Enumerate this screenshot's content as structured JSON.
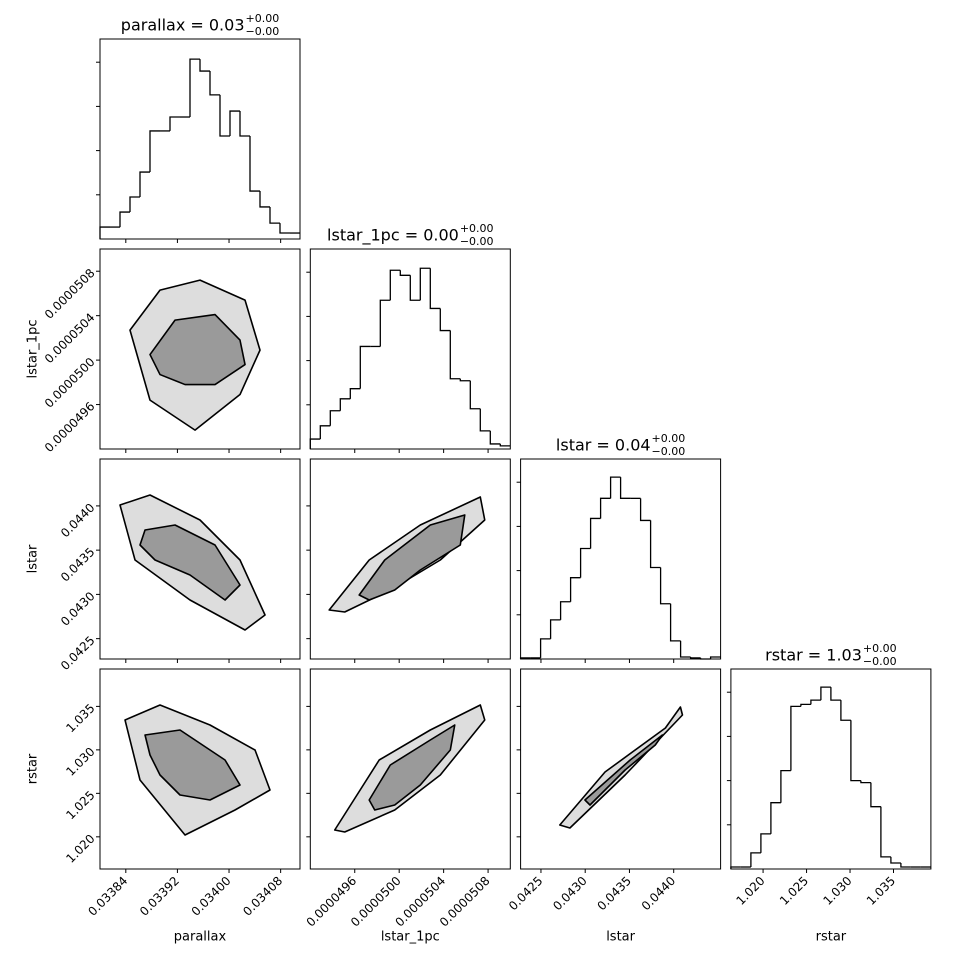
{
  "chart_data": {
    "type": "corner",
    "line_color": "#000000",
    "contour_fills": [
      "#dddddd",
      "#9a9a9a"
    ],
    "hist_ylim": [
      0,
      905
    ],
    "hist_yticks": [
      200,
      400,
      600,
      800
    ],
    "hist_show_ytick_labels": false,
    "variables": [
      {
        "name": "parallax",
        "title": "parallax = 0.03",
        "title_sup": "+0.00",
        "title_sub": "−0.00",
        "lim": [
          0.0338,
          0.03411
        ],
        "ticks": [
          0.03384,
          0.03392,
          {
            "value": 0.034,
            "label": "0.03400"
          },
          0.03408
        ],
        "bins": [
          0.0338,
          0.0338155,
          0.033831,
          0.0338465,
          0.033862,
          0.0338775,
          0.033893,
          0.0339085,
          0.033924,
          0.0339395,
          0.033955,
          0.0339705,
          0.033986,
          0.0340015,
          0.034017,
          0.0340325,
          0.034048,
          0.0340635,
          0.034079,
          0.0340945,
          0.03411
        ],
        "counts": [
          54,
          54,
          122,
          190,
          303,
          489,
          489,
          552,
          552,
          814,
          760,
          652,
          466,
          579,
          466,
          217,
          145,
          72,
          27,
          27
        ]
      },
      {
        "name": "lstar_1pc",
        "title": "lstar_1pc = 0.00",
        "title_sup": "+0.00",
        "title_sub": "−0.00",
        "lim": [
          4.92e-05,
          5.1e-05
        ],
        "ticks": [
          4.96e-05,
          {
            "value": 5e-05,
            "label": "0.0000500"
          },
          5.04e-05,
          5.08e-05
        ],
        "bins": [
          4.92e-05,
          4.929e-05,
          4.938e-05,
          4.947e-05,
          4.956e-05,
          4.965e-05,
          4.974e-05,
          4.983e-05,
          4.992e-05,
          5.001e-05,
          5.01e-05,
          5.019e-05,
          5.028e-05,
          5.037e-05,
          5.046e-05,
          5.055e-05,
          5.064e-05,
          5.073e-05,
          5.082e-05,
          5.091e-05,
          5.1e-05
        ],
        "counts": [
          45,
          105,
          173,
          227,
          273,
          464,
          464,
          673,
          809,
          786,
          673,
          818,
          636,
          536,
          318,
          309,
          182,
          82,
          23,
          14
        ]
      },
      {
        "name": "lstar",
        "title": "lstar = 0.04",
        "title_sup": "+0.00",
        "title_sub": "−0.00",
        "lim": [
          0.04227,
          0.04453
        ],
        "ticks": [
          0.0425,
          {
            "value": 0.043,
            "label": "0.0430"
          },
          0.0435,
          {
            "value": 0.044,
            "label": "0.0440"
          }
        ],
        "bins": [
          0.04227,
          0.042383,
          0.042496,
          0.042609,
          0.042722,
          0.042835,
          0.042948,
          0.043061,
          0.043174,
          0.043287,
          0.0434,
          0.043513,
          0.043626,
          0.043739,
          0.043852,
          0.043965,
          0.044078,
          0.044191,
          0.044304,
          0.044417,
          0.04453
        ],
        "counts": [
          5,
          5,
          91,
          177,
          259,
          368,
          500,
          636,
          727,
          823,
          727,
          727,
          627,
          414,
          250,
          82,
          9,
          5,
          0,
          9
        ]
      },
      {
        "name": "rstar",
        "title": "rstar = 1.03",
        "title_sup": "+0.00",
        "title_sub": "−0.00",
        "lim": [
          1.0163,
          1.0393
        ],
        "ticks": [
          {
            "value": 1.02,
            "label": "1.020"
          },
          1.025,
          {
            "value": 1.03,
            "label": "1.030"
          },
          1.035
        ],
        "bins": [
          1.0163,
          1.01745,
          1.0186,
          1.01975,
          1.0209,
          1.02205,
          1.0232,
          1.02435,
          1.0255,
          1.02665,
          1.0278,
          1.02895,
          1.0301,
          1.03125,
          1.0324,
          1.03355,
          1.0347,
          1.03585,
          1.037,
          1.03815,
          1.0393
        ],
        "counts": [
          9,
          9,
          73,
          159,
          300,
          445,
          736,
          745,
          764,
          823,
          764,
          673,
          400,
          391,
          282,
          55,
          27,
          9,
          9,
          9
        ]
      }
    ],
    "pairs": [
      {
        "x_var": 0,
        "y_var": 1,
        "contours": [
          {
            "x": [
              0.0338465,
              0.033893,
              0.033955,
              0.0340248,
              0.034048,
              0.034017,
              0.0339473,
              0.0338775
            ],
            "y": [
              5.027e-05,
              5.063e-05,
              5.072e-05,
              5.054e-05,
              5.009e-05,
              4.969e-05,
              4.937e-05,
              4.964e-05
            ]
          },
          {
            "x": [
              0.0338775,
              0.0339163,
              0.0339783,
              0.034017,
              0.0340248,
              0.0339783,
              0.0339318,
              0.033893
            ],
            "y": [
              5.005e-05,
              5.036e-05,
              5.041e-05,
              5.018e-05,
              4.996e-05,
              4.978e-05,
              4.978e-05,
              4.987e-05
            ]
          }
        ]
      },
      {
        "x_var": 0,
        "y_var": 2,
        "contours": [
          {
            "x": [
              0.033831,
              0.0338775,
              0.033955,
              0.034017,
              0.0340558,
              0.0340248,
              0.0339395,
              0.0338543
            ],
            "y": [
              0.0440102,
              0.0441232,
              0.0438407,
              0.0433887,
              0.0427672,
              0.0425977,
              0.0429367,
              0.0433887
            ]
          },
          {
            "x": [
              0.0338698,
              0.0339163,
              0.0339783,
              0.034017,
              0.0339938,
              0.0339395,
              0.0338853,
              0.033862
            ],
            "y": [
              0.0437277,
              0.0437842,
              0.0435582,
              0.0431062,
              0.0429367,
              0.0432192,
              0.0433887,
              0.0435582
            ]
          }
        ]
      },
      {
        "x_var": 0,
        "y_var": 3,
        "contours": [
          {
            "x": [
              0.0338388,
              0.033893,
              0.0339705,
              0.0340403,
              0.0340635,
              0.0340093,
              0.0339318,
              0.033862
            ],
            "y": [
              1.033435,
              1.03516,
              1.03286,
              1.029985,
              1.025385,
              1.023085,
              1.02021,
              1.026535
            ]
          },
          {
            "x": [
              0.0338698,
              0.033924,
              0.0339938,
              0.034017,
              0.0339705,
              0.033924,
              0.033893,
              0.0338775
            ],
            "y": [
              1.03171,
              1.032285,
              1.028835,
              1.02596,
              1.024235,
              1.02481,
              1.02711,
              1.02941
            ]
          }
        ]
      },
      {
        "x_var": 1,
        "y_var": 2,
        "contours": [
          {
            "x": [
              4.937e-05,
              4.973e-05,
              5.019e-05,
              5.073e-05,
              5.077e-05,
              5.037e-05,
              4.992e-05,
              4.951e-05
            ],
            "y": [
              0.0428237,
              0.0433887,
              0.0437842,
              0.0441006,
              0.0438407,
              0.0433887,
              0.0430497,
              0.0428011
            ]
          },
          {
            "x": [
              4.964e-05,
              4.987e-05,
              5.028e-05,
              5.059e-05,
              5.055e-05,
              5.019e-05,
              4.996e-05,
              4.973e-05
            ],
            "y": [
              0.0429932,
              0.0433887,
              0.0437842,
              0.0438972,
              0.0435582,
              0.0432757,
              0.0430497,
              0.0429367
            ]
          }
        ]
      },
      {
        "x_var": 1,
        "y_var": 3,
        "contours": [
          {
            "x": [
              4.942e-05,
              4.982e-05,
              5.028e-05,
              5.073e-05,
              5.077e-05,
              5.037e-05,
              4.996e-05,
              4.951e-05
            ],
            "y": [
              1.020785,
              1.028835,
              1.032285,
              1.03516,
              1.033435,
              1.02711,
              1.023085,
              1.020555
            ]
          },
          {
            "x": [
              4.973e-05,
              4.992e-05,
              5.028e-05,
              5.05e-05,
              5.046e-05,
              5.019e-05,
              4.996e-05,
              4.978e-05
            ],
            "y": [
              1.024235,
              1.02826,
              1.031135,
              1.03286,
              1.029985,
              1.02596,
              1.02366,
              1.023085
            ]
          }
        ]
      },
      {
        "x_var": 2,
        "y_var": 3,
        "contours": [
          {
            "x": [
              0.042713,
              0.043224,
              0.043906,
              0.044076,
              0.044099,
              0.043451,
              0.042827
            ],
            "y": [
              1.02136,
              1.027455,
              1.032515,
              1.03493,
              1.03401,
              1.02711,
              1.021015
            ]
          },
          {
            "x": [
              0.042997,
              0.043508,
              0.043872,
              0.043792,
              0.043451,
              0.043054
            ],
            "y": [
              1.024235,
              1.028835,
              1.03171,
              1.03056,
              1.027685,
              1.02366
            ]
          }
        ]
      }
    ]
  }
}
